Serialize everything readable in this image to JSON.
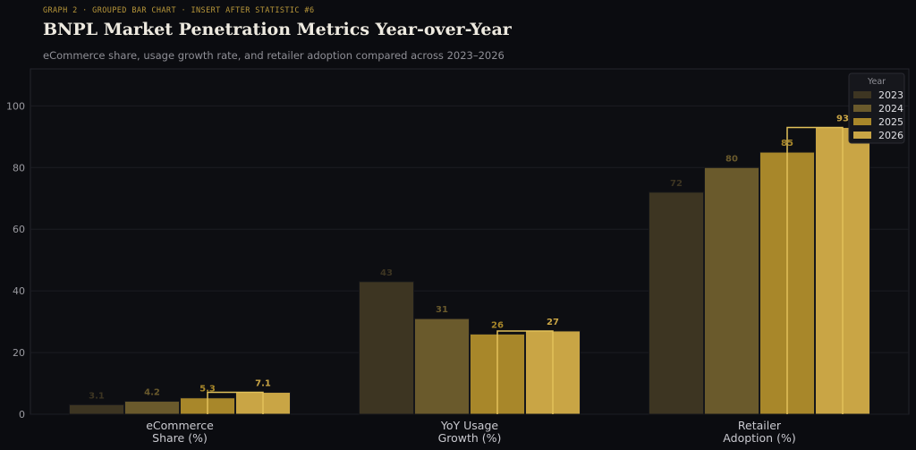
{
  "header": {
    "kicker": "GRAPH 2  ·  GROUPED BAR CHART  ·  INSERT AFTER STATISTIC #6",
    "title": "BNPL Market Penetration Metrics Year-over-Year",
    "subtitle": "eCommerce share, usage growth rate, and retailer adoption compared across 2023–2026"
  },
  "colors": {
    "2023": "#3d3522",
    "2024": "#6a5a2c",
    "2025": "#a8872a",
    "2026": "#c9a545",
    "grid": "#1c1d23",
    "axis_text": "#9a9aa0",
    "category_text": "#c9c9cf"
  },
  "chart_data": {
    "type": "bar",
    "categories": [
      [
        "eCommerce",
        "Share (%)"
      ],
      [
        "YoY Usage",
        "Growth (%)"
      ],
      [
        "Retailer",
        "Adoption (%)"
      ]
    ],
    "series": [
      {
        "name": "2023",
        "values": [
          3.1,
          43,
          72
        ],
        "labels": [
          "3.1",
          "43",
          "72"
        ]
      },
      {
        "name": "2024",
        "values": [
          4.2,
          31,
          80
        ],
        "labels": [
          "4.2",
          "31",
          "80"
        ]
      },
      {
        "name": "2025",
        "values": [
          5.3,
          26,
          85
        ],
        "labels": [
          "5.3",
          "26",
          "85"
        ]
      },
      {
        "name": "2026",
        "values": [
          7.1,
          27,
          93
        ],
        "labels": [
          "7.1",
          "27",
          "93"
        ]
      }
    ],
    "ylim": [
      0,
      112
    ],
    "yticks": [
      0,
      20,
      40,
      60,
      80,
      100
    ],
    "legend": {
      "title": "Year",
      "position": "top-right"
    },
    "grid": true
  }
}
